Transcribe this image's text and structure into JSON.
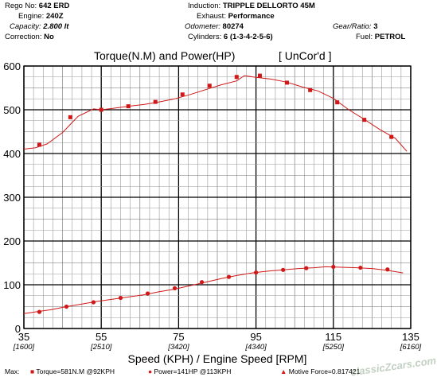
{
  "header": {
    "rego_label": "Rego No:",
    "rego": "642 ERD",
    "engine_label": "Engine:",
    "engine": "240Z",
    "capacity_label": "Capacity:",
    "capacity": "2.800 lt",
    "correction_label": "Correction:",
    "correction": "No",
    "induction_label": "Induction:",
    "induction": "TRIPPLE DELLORTO 45M",
    "exhaust_label": "Exhaust:",
    "exhaust": "Performance",
    "odometer_label": "Odometer:",
    "odometer": "80274",
    "cylinders_label": "Cylinders:",
    "cylinders": "6 (1-3-4-2-5-6)",
    "gear_label": "Gear/Ratio:",
    "gear": "3",
    "fuel_label": "Fuel:",
    "fuel": "PETROL"
  },
  "footer": {
    "max_label": "Max:",
    "torque_label": "Torque=581N.M @92KPH",
    "power_label": "Power=141HP @113KPH",
    "motive_label": "Motive Force=0.817421",
    "watermark": "classicZcars.com"
  },
  "colors": {
    "series": "#d01818",
    "grid_major": "#000000",
    "grid_minor": "#9a9a9a"
  },
  "chart_data": {
    "type": "line",
    "title": "Torque(N.M) and Power(HP)",
    "title_note": "[ UnCor'd ]",
    "xlabel": "Speed (KPH) / Engine Speed [RPM]",
    "ylabel": "",
    "xlim": [
      35,
      135
    ],
    "ylim": [
      0,
      600
    ],
    "x_ticks": [
      35,
      55,
      75,
      95,
      115,
      135
    ],
    "x_tick_labels": [
      "35",
      "55",
      "75",
      "95",
      "115",
      "135"
    ],
    "x_rpm_labels": [
      "[1600]",
      "[2510]",
      "[3420]",
      "[4340]",
      "[5250]",
      "[6160]"
    ],
    "y_ticks": [
      0,
      100,
      200,
      300,
      400,
      500,
      600
    ],
    "y_tick_labels": [
      "0",
      "100",
      "200",
      "300",
      "400",
      "500",
      "600"
    ],
    "grid": true,
    "series": [
      {
        "name": "Torque",
        "marker": "square",
        "x": [
          35,
          38,
          41,
          45,
          49,
          53,
          55,
          58,
          62,
          66,
          70,
          74,
          78,
          82,
          86,
          90,
          92,
          95,
          99,
          103,
          107,
          111,
          115,
          119,
          123,
          127,
          131,
          134
        ],
        "y": [
          410,
          413,
          422,
          448,
          485,
          502,
          500,
          503,
          508,
          512,
          518,
          525,
          535,
          546,
          557,
          566,
          578,
          574,
          570,
          563,
          552,
          543,
          526,
          500,
          478,
          455,
          435,
          405
        ],
        "markers_x": [
          39,
          47,
          55,
          62,
          69,
          76,
          83,
          90,
          96,
          103,
          109,
          116,
          123,
          130
        ],
        "markers_y": [
          420,
          483,
          500,
          508,
          518,
          535,
          555,
          575,
          578,
          562,
          545,
          517,
          477,
          438
        ]
      },
      {
        "name": "Power",
        "marker": "circle",
        "x": [
          35,
          38,
          42,
          46,
          50,
          54,
          58,
          62,
          66,
          70,
          74,
          78,
          82,
          86,
          90,
          94,
          98,
          102,
          106,
          110,
          113,
          117,
          121,
          125,
          129,
          133
        ],
        "y": [
          34,
          38,
          43,
          50,
          56,
          62,
          67,
          72,
          77,
          84,
          90,
          98,
          106,
          114,
          121,
          127,
          131,
          134,
          137,
          139,
          141,
          140,
          139,
          137,
          133,
          127
        ],
        "markers_x": [
          39,
          46,
          53,
          60,
          67,
          74,
          81,
          88,
          95,
          102,
          108,
          115,
          122,
          129
        ],
        "markers_y": [
          38,
          50,
          60,
          70,
          80,
          92,
          106,
          118,
          128,
          134,
          138,
          141,
          139,
          135
        ]
      }
    ]
  }
}
